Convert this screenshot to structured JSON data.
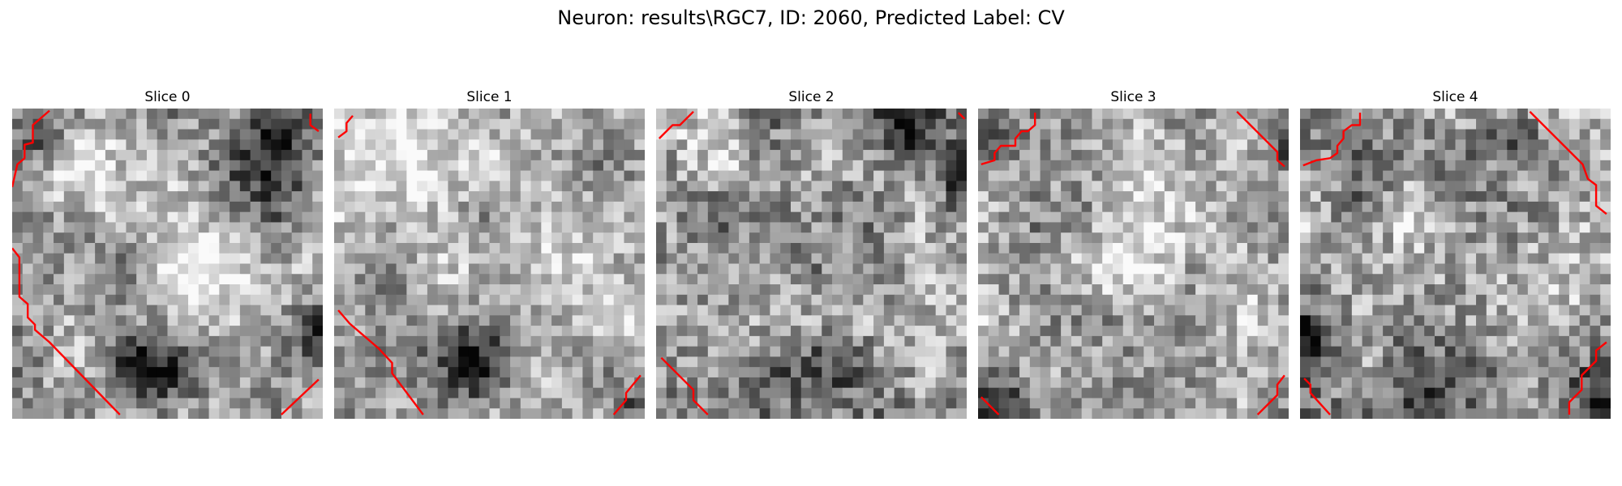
{
  "figure": {
    "title": "Neuron: results\\RGC7, ID: 2060, Predicted Label: CV",
    "contour_color": "#ff0000",
    "colormap": "gray",
    "panels": [
      {
        "title": "Slice 0",
        "image_description": "blurry grayscale texture, dark blob bottom-center and dark band upper-right",
        "contour_corners": [
          "top-left",
          "left edge",
          "bottom-left diagonal",
          "bottom-right",
          "top-right"
        ]
      },
      {
        "title": "Slice 1",
        "image_description": "bright upper-left region, dark blob lower-center",
        "contour_corners": [
          "top-left",
          "bottom-left diagonal",
          "bottom-right"
        ]
      },
      {
        "title": "Slice 2",
        "image_description": "fine grained mid-gray noise, dark patch top-right",
        "contour_corners": [
          "top-left",
          "top-right",
          "bottom-left diagonal"
        ]
      },
      {
        "title": "Slice 3",
        "image_description": "light gray noise with dark ring edges at bottom-left",
        "contour_corners": [
          "top-left stairs",
          "top-right diagonal",
          "bottom-left",
          "bottom-right"
        ]
      },
      {
        "title": "Slice 4",
        "image_description": "mid-gray noise with dark ring at bottom",
        "contour_corners": [
          "top-left stairs",
          "top-right diagonal",
          "bottom-left",
          "bottom-right"
        ]
      }
    ]
  }
}
